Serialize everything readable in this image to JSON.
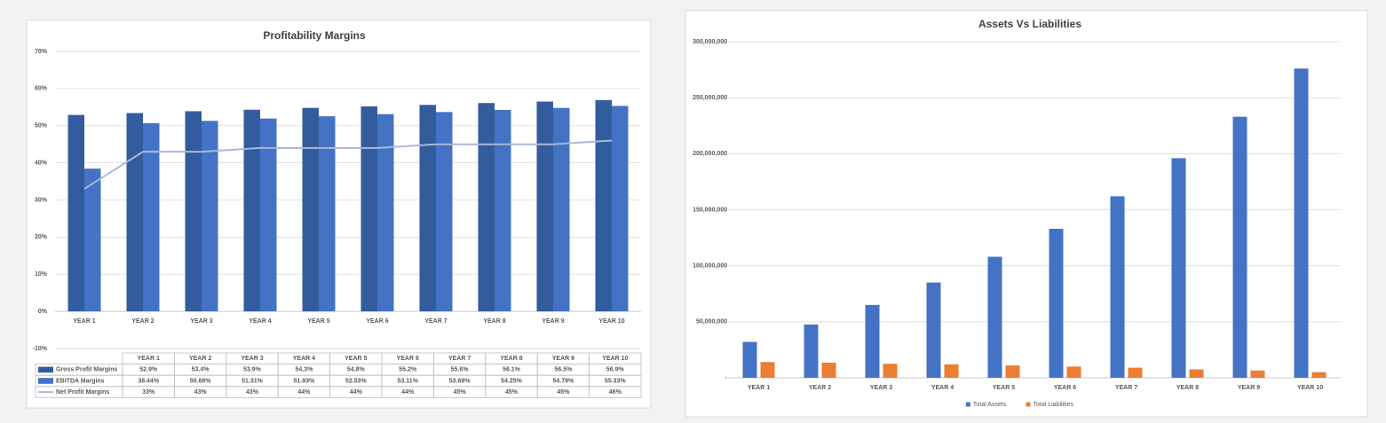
{
  "chart_data": [
    {
      "type": "combo",
      "title": "Profitability Margins",
      "categories": [
        "YEAR 1",
        "YEAR 2",
        "YEAR 3",
        "YEAR 4",
        "YEAR 5",
        "YEAR 6",
        "YEAR 7",
        "YEAR 8",
        "YEAR 9",
        "YEAR 10"
      ],
      "series": [
        {
          "name": "Gross Profit Margins",
          "type": "bar",
          "color": "#335c9e",
          "values": [
            52.9,
            53.4,
            53.9,
            54.3,
            54.8,
            55.2,
            55.6,
            56.1,
            56.5,
            56.9
          ],
          "value_labels": [
            "52.9%",
            "53.4%",
            "53.9%",
            "54.3%",
            "54.8%",
            "55.2%",
            "55.6%",
            "56.1%",
            "56.5%",
            "56.9%"
          ]
        },
        {
          "name": "EBITDA Margins",
          "type": "bar",
          "color": "#4472c4",
          "values": [
            38.44,
            50.68,
            51.31,
            51.93,
            52.53,
            53.11,
            53.69,
            54.25,
            54.79,
            55.33
          ],
          "value_labels": [
            "38.44%",
            "50.68%",
            "51.31%",
            "51.93%",
            "52.53%",
            "53.11%",
            "53.69%",
            "54.25%",
            "54.79%",
            "55.33%"
          ]
        },
        {
          "name": "Net Profit Margins",
          "type": "line",
          "color": "#a9b8d8",
          "values": [
            33,
            43,
            43,
            44,
            44,
            44,
            45,
            45,
            45,
            46
          ],
          "value_labels": [
            "33%",
            "43%",
            "43%",
            "44%",
            "44%",
            "44%",
            "45%",
            "45%",
            "45%",
            "46%"
          ]
        }
      ],
      "ylim": [
        -10,
        70
      ],
      "yticks": [
        {
          "value": -10,
          "label": "-10%"
        },
        {
          "value": 0,
          "label": "0%"
        },
        {
          "value": 10,
          "label": "10%"
        },
        {
          "value": 20,
          "label": "20%"
        },
        {
          "value": 30,
          "label": "30%"
        },
        {
          "value": 40,
          "label": "40%"
        },
        {
          "value": 50,
          "label": "50%"
        },
        {
          "value": 60,
          "label": "60%"
        },
        {
          "value": 70,
          "label": "70%"
        }
      ],
      "grid": true,
      "data_table": true
    },
    {
      "type": "bar",
      "title": "Assets Vs Liabilities",
      "categories": [
        "YEAR 1",
        "YEAR 2",
        "YEAR 3",
        "YEAR 4",
        "YEAR 5",
        "YEAR 6",
        "YEAR 7",
        "YEAR 8",
        "YEAR 9",
        "YEAR 10"
      ],
      "series": [
        {
          "name": "Total Assets",
          "color": "#4472c4",
          "values": [
            32000000,
            47500000,
            65000000,
            85000000,
            108000000,
            133000000,
            162000000,
            196000000,
            233000000,
            276000000
          ]
        },
        {
          "name": "Total Liabilities",
          "color": "#ed7d31",
          "values": [
            14000000,
            13500000,
            12500000,
            12000000,
            11000000,
            10000000,
            9000000,
            7500000,
            6500000,
            5000000
          ]
        }
      ],
      "ylim": [
        0,
        300000000
      ],
      "yticks": [
        {
          "value": 0,
          "label": "-"
        },
        {
          "value": 50000000,
          "label": "50,000,000"
        },
        {
          "value": 100000000,
          "label": "100,000,000"
        },
        {
          "value": 150000000,
          "label": "150,000,000"
        },
        {
          "value": 200000000,
          "label": "200,000,000"
        },
        {
          "value": 250000000,
          "label": "250,000,000"
        },
        {
          "value": 300000000,
          "label": "300,000,000"
        }
      ],
      "grid": true,
      "legend": "bottom"
    }
  ]
}
